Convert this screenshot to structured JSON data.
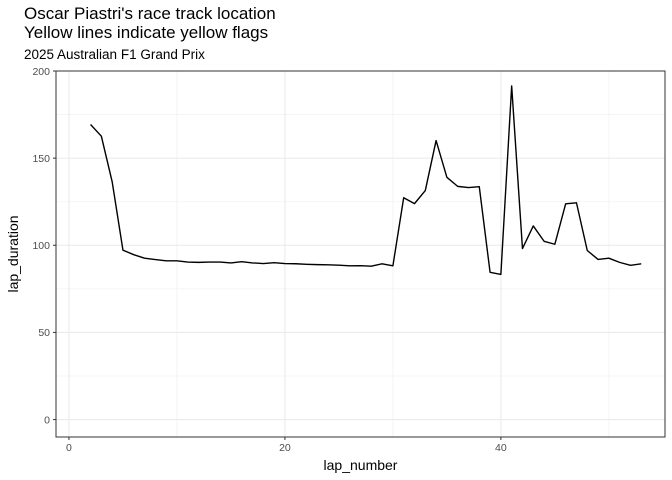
{
  "chart_data": {
    "type": "line",
    "title": "Oscar Piastri's race track location",
    "title_line2": "Yellow lines indicate yellow flags",
    "subtitle": "2025 Australian F1 Grand Prix",
    "xlabel": "lap_number",
    "ylabel": "lap_duration",
    "xlim": [
      -1.2,
      55.2
    ],
    "ylim": [
      -10,
      200
    ],
    "x_ticks": [
      0,
      20,
      40
    ],
    "y_ticks": [
      0,
      50,
      100,
      150,
      200
    ],
    "grid": true,
    "line_color": "#000000",
    "series": [
      {
        "x": [
          2,
          3,
          4,
          5,
          6,
          7,
          8,
          9,
          10,
          11,
          12,
          13,
          14,
          15,
          16,
          17,
          18,
          19,
          20,
          21,
          22,
          23,
          24,
          25,
          26,
          27,
          28,
          29,
          30,
          31,
          32,
          33,
          34,
          35,
          36,
          37,
          38,
          39,
          40,
          41,
          42,
          43,
          44,
          45,
          46,
          47,
          48,
          49,
          50,
          51,
          52,
          53
        ],
        "values": [
          169.3,
          162.6,
          136.5,
          97.2,
          94.6,
          92.6,
          91.8,
          91.1,
          91.1,
          90.4,
          90.2,
          90.4,
          90.4,
          89.9,
          90.6,
          89.9,
          89.5,
          90.0,
          89.5,
          89.4,
          89.1,
          88.9,
          88.8,
          88.6,
          88.2,
          88.3,
          88.0,
          89.4,
          88.2,
          127.3,
          123.9,
          131.4,
          160.1,
          139.0,
          133.8,
          133.1,
          133.6,
          84.5,
          83.3,
          191.4,
          98.1,
          111.1,
          102.3,
          100.6,
          123.8,
          124.4,
          97.0,
          91.9,
          92.6,
          90.2,
          88.5,
          89.4
        ]
      }
    ]
  }
}
